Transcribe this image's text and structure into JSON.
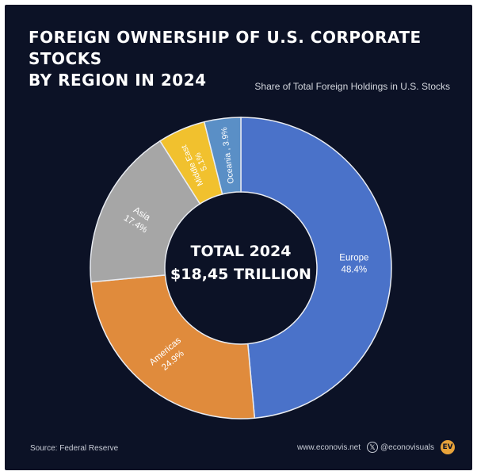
{
  "title_line1": "FOREIGN OWNERSHIP OF U.S. CORPORATE STOCKS",
  "title_line2": "BY REGION IN 2024",
  "subtitle": "Share of Total Foreign Holdings in U.S. Stocks",
  "center_line1": "TOTAL 2024",
  "center_line2": "$18,45 TRILLION",
  "source": "Source: Federal Reserve",
  "website": "www.econovis.net",
  "handle": "@econovisuals",
  "logo_text": "EV",
  "x_icon": "x-logo-icon",
  "chart_data": {
    "type": "pie",
    "title": "FOREIGN OWNERSHIP OF U.S. CORPORATE STOCKS BY REGION IN 2024",
    "subtitle": "Share of Total Foreign Holdings in U.S. Stocks",
    "unit": "%",
    "slices": [
      {
        "label": "Europe",
        "value": 48.4,
        "value_label": "48.4%",
        "color": "#4a72c9"
      },
      {
        "label": "Americas",
        "value": 24.9,
        "value_label": "24.9%",
        "color": "#e08b3c"
      },
      {
        "label": "Asia",
        "value": 17.4,
        "value_label": "17.4%",
        "color": "#a6a6a6"
      },
      {
        "label": "Middle East",
        "value": 5.1,
        "value_label": "5.1%",
        "color": "#f1c12e"
      },
      {
        "label": "Oceania",
        "value": 3.9,
        "value_label": "3.9%",
        "color": "#5a8fc6"
      }
    ]
  }
}
